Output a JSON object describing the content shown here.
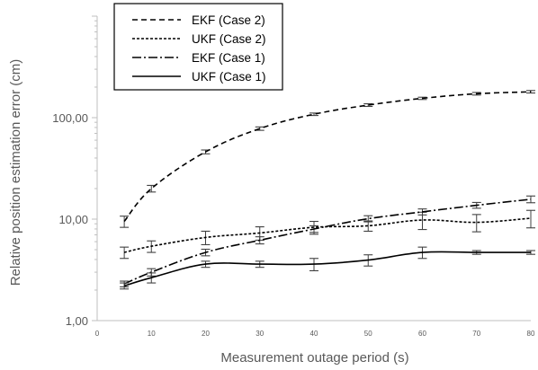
{
  "chart_data": {
    "type": "line",
    "xlabel": "Measurement outage period (s)",
    "ylabel": "Relative position estimation error (cm)",
    "y_scale": "log",
    "ylim": [
      1,
      1000
    ],
    "xlim": [
      0,
      80
    ],
    "x_ticks": [
      "0",
      "10",
      "20",
      "30",
      "40",
      "50",
      "60",
      "70",
      "80"
    ],
    "y_tick_labels": [
      "1,00",
      "10,00",
      "100,00"
    ],
    "y_tick_values": [
      1,
      10,
      100
    ],
    "legend_position": "top-left",
    "grid": false,
    "x": [
      5,
      10,
      20,
      30,
      40,
      50,
      60,
      70,
      80
    ],
    "series": [
      {
        "name": "EKF (Case 2)",
        "style": "dashed",
        "values": [
          9.5,
          20,
          46,
          78,
          108,
          133,
          155,
          172,
          180
        ],
        "errors": [
          1.2,
          1.5,
          2,
          3,
          3,
          4,
          4,
          5,
          5
        ]
      },
      {
        "name": "UKF (Case 2)",
        "style": "dotted",
        "values": [
          4.7,
          5.4,
          6.6,
          7.3,
          8.3,
          8.6,
          9.8,
          9.3,
          10.2
        ],
        "errors": [
          0.6,
          0.7,
          1.0,
          1.1,
          1.2,
          1.0,
          1.9,
          1.8,
          2.0
        ]
      },
      {
        "name": "EKF (Case 1)",
        "style": "dashdot",
        "values": [
          2.3,
          3.0,
          4.7,
          6.2,
          8.0,
          10.1,
          11.8,
          13.7,
          15.7
        ],
        "errors": [
          0.15,
          0.25,
          0.35,
          0.5,
          0.6,
          0.7,
          0.8,
          0.9,
          1.2
        ]
      },
      {
        "name": "UKF (Case 1)",
        "style": "solid",
        "values": [
          2.2,
          2.65,
          3.6,
          3.6,
          3.6,
          3.95,
          4.7,
          4.7,
          4.7
        ],
        "errors": [
          0.15,
          0.3,
          0.25,
          0.25,
          0.5,
          0.5,
          0.6,
          0.2,
          0.2
        ]
      }
    ]
  }
}
